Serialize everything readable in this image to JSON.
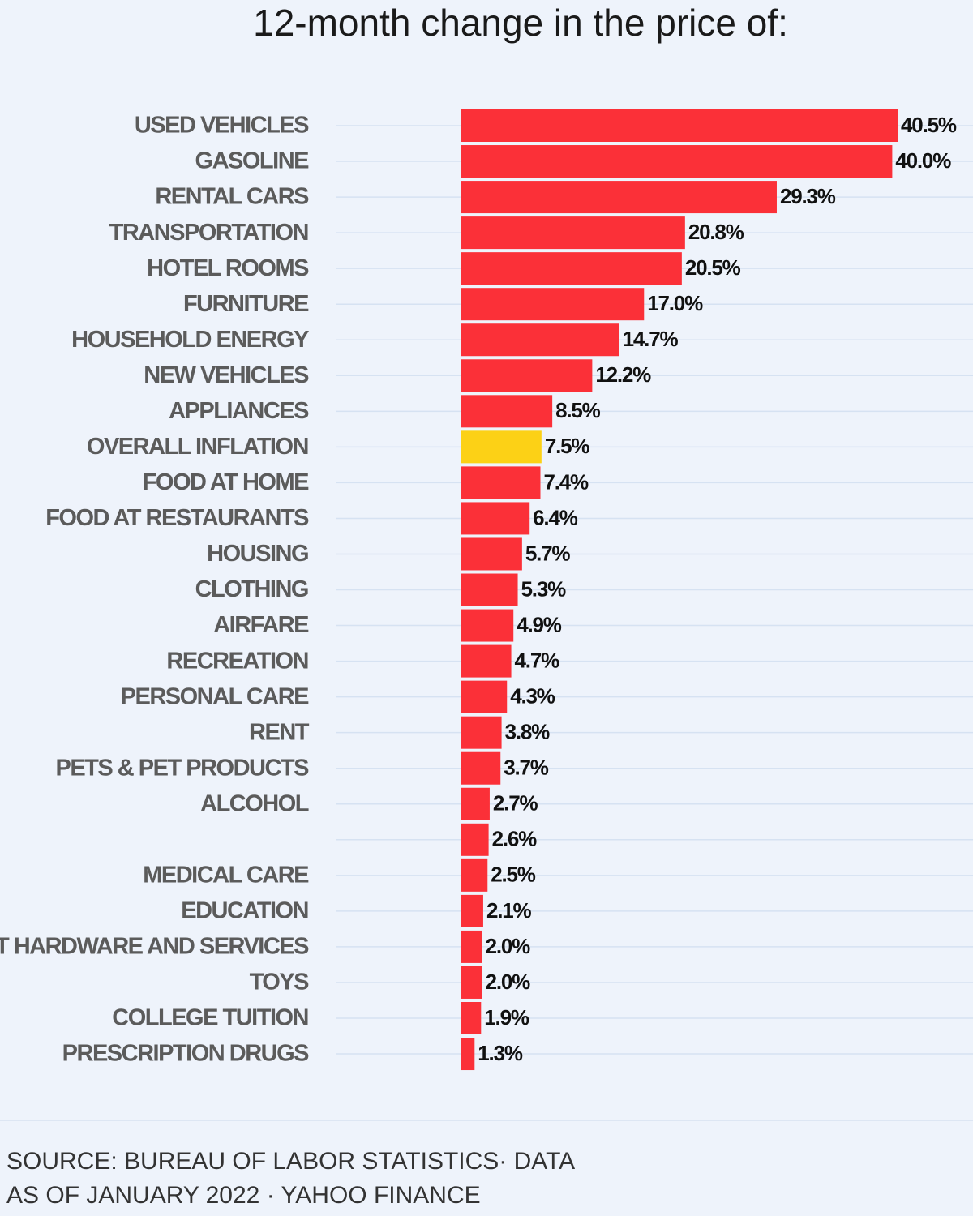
{
  "chart_data": {
    "type": "bar",
    "orientation": "horizontal",
    "title": "12-month change in the price of:",
    "categories": [
      "USED VEHICLES",
      "GASOLINE",
      "RENTAL CARS",
      "TRANSPORTATION",
      "HOTEL ROOMS",
      "FURNITURE",
      "HOUSEHOLD ENERGY",
      "NEW VEHICLES",
      "APPLIANCES",
      "OVERALL INFLATION",
      "FOOD AT HOME",
      "FOOD AT RESTAURANTS",
      "HOUSING",
      "CLOTHING",
      "AIRFARE",
      "RECREATION",
      "PERSONAL CARE",
      "RENT",
      "PETS & PET PRODUCTS",
      "ALCOHOL",
      null,
      "MEDICAL CARE",
      "EDUCATION",
      "IT HARDWARE AND SERVICES",
      "TOYS",
      "COLLEGE TUITION",
      "PRESCRIPTION DRUGS"
    ],
    "values": [
      40.5,
      40.0,
      29.3,
      20.8,
      20.5,
      17.0,
      14.7,
      12.2,
      8.5,
      7.5,
      7.4,
      6.4,
      5.7,
      5.3,
      4.9,
      4.7,
      4.3,
      3.8,
      3.7,
      2.7,
      2.6,
      2.5,
      2.1,
      2.0,
      2.0,
      1.9,
      1.3
    ],
    "value_labels": [
      "40.5%",
      "40.0%",
      "29.3%",
      "20.8%",
      "20.5%",
      "17.0%",
      "14.7%",
      "12.2%",
      "8.5%",
      "7.5%",
      "7.4%",
      "6.4%",
      "5.7%",
      "5.3%",
      "4.9%",
      "4.7%",
      "4.3%",
      "3.8%",
      "3.7%",
      "2.7%",
      "2.6%",
      "2.5%",
      "2.1%",
      "2.0%",
      "2.0%",
      "1.9%",
      "1.3%"
    ],
    "colors": [
      "#fb3038",
      "#fb3038",
      "#fb3038",
      "#fb3038",
      "#fb3038",
      "#fb3038",
      "#fb3038",
      "#fb3038",
      "#fb3038",
      "#fcd116",
      "#fb3038",
      "#fb3038",
      "#fb3038",
      "#fb3038",
      "#fb3038",
      "#fb3038",
      "#fb3038",
      "#fb3038",
      "#fb3038",
      "#fb3038",
      "#fb3038",
      "#fb3038",
      "#fb3038",
      "#fb3038",
      "#fb3038",
      "#fb3038",
      "#fb3038"
    ],
    "source": [
      "SOURCE: BUREAU OF LABOR STATISTICS· DATA",
      "AS OF JANUARY 2022 · YAHOO FINANCE"
    ]
  }
}
